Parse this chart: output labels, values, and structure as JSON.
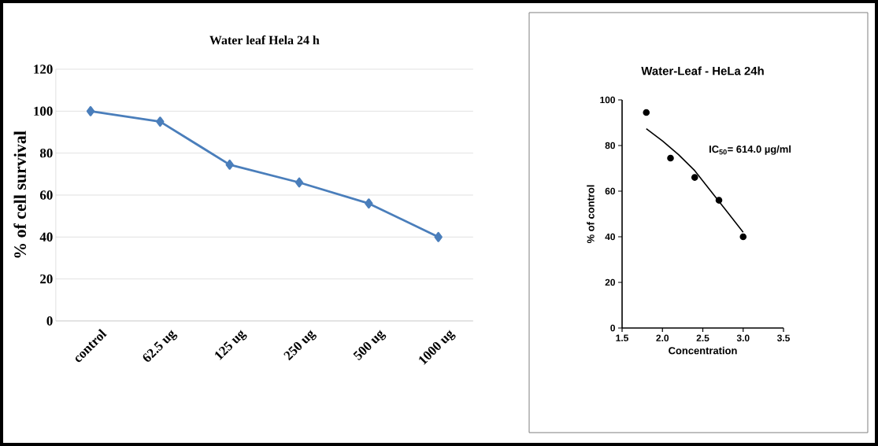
{
  "chart_data": [
    {
      "type": "line",
      "title": "Water leaf Hela 24 h",
      "ylabel": "% of  cell survival",
      "categories": [
        "control",
        "62.5 ug",
        "125 ug",
        "250 ug",
        "500 ug",
        "1000 ug"
      ],
      "values": [
        100,
        95,
        74.5,
        66,
        56,
        40
      ],
      "color": "#4a7ebb",
      "marker": "diamond",
      "ylim": [
        0,
        120
      ],
      "yticks": [
        0,
        20,
        40,
        60,
        80,
        100,
        120
      ],
      "grid": "y"
    },
    {
      "type": "scatter",
      "title": "Water-Leaf - HeLa 24h",
      "xlabel": "Concentration",
      "ylabel": "% of control",
      "annotations": [
        "IC$_{50}$= 614.0 µg/ml"
      ],
      "series": [
        {
          "type": "scatter",
          "x": [
            1.8,
            2.1,
            2.4,
            2.7,
            3.0
          ],
          "values": [
            94.5,
            74.5,
            66,
            56,
            40
          ],
          "color": "#000000",
          "marker": "circle"
        },
        {
          "type": "line",
          "x": [
            1.8,
            2.0,
            2.2,
            2.4,
            2.6,
            2.8,
            3.0
          ],
          "values": [
            87.4,
            82,
            76,
            69,
            60,
            51,
            42
          ],
          "color": "#000000",
          "marker": "none"
        }
      ],
      "xlim": [
        1.5,
        3.5
      ],
      "xticks": [
        1.5,
        {
          "value": 2.0,
          "label": "2.0"
        },
        2.5,
        {
          "value": 3.0,
          "label": "3.0"
        },
        3.5
      ],
      "ylim": [
        0,
        100
      ],
      "yticks": [
        0,
        20,
        40,
        60,
        80,
        100
      ],
      "grid": false
    }
  ]
}
